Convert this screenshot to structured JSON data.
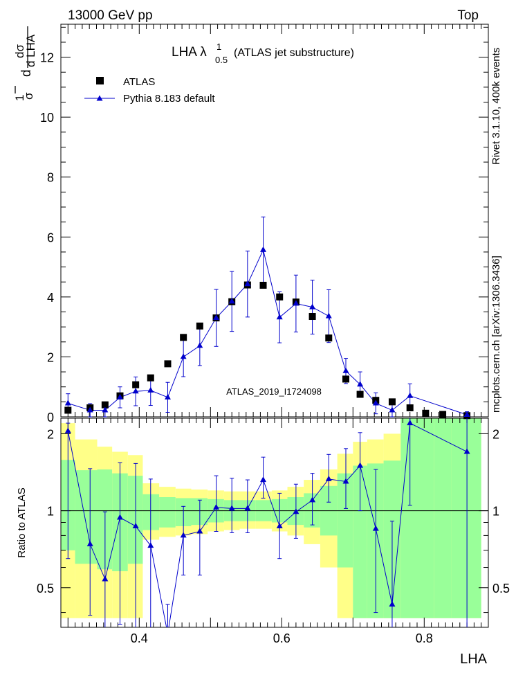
{
  "header": {
    "left": "13000 GeV pp",
    "right": "Top"
  },
  "side_labels": {
    "rivet": "Rivet 3.1.10,  400k events",
    "mcplots": "mcplots.cern.ch [arXiv:1306.3436]"
  },
  "chart_data": {
    "type": "scatter",
    "title_main": "LHA λ",
    "title_sup": "1",
    "title_sub": "0.5",
    "title_rest": "(ATLAS jet substructure)",
    "analysis_tag": "ATLAS_2019_I1724098",
    "xlabel": "LHA",
    "ylabel_top": "1/σ dσ/d LHA",
    "ylabel_frac_num": "1",
    "ylabel_frac_den": "σ",
    "ylabel_d": "d",
    "ylabel_num2": "dσ",
    "ylabel_den2": "d LHA",
    "ylabel_bottom": "Ratio to ATLAS",
    "xlim": [
      0.29,
      0.89
    ],
    "ylim_top": [
      0,
      13.1
    ],
    "ylim_ratio": [
      0.35,
      2.3
    ],
    "x_ticks": [
      0.4,
      0.6,
      0.8
    ],
    "x_tick_labels": [
      "0.4",
      "0.6",
      "0.8"
    ],
    "y_ticks_top": [
      0,
      2,
      4,
      6,
      8,
      10,
      12
    ],
    "y_tick_labels_top": [
      "0",
      "2",
      "4",
      "6",
      "8",
      "10",
      "12"
    ],
    "y_ticks_ratio": [
      0.5,
      1,
      2
    ],
    "y_tick_labels_ratio": [
      "0.5",
      "1",
      "2"
    ],
    "legend": [
      "ATLAS",
      "Pythia 8.183 default"
    ],
    "series": [
      {
        "name": "ATLAS",
        "x": [
          0.3,
          0.331,
          0.352,
          0.373,
          0.395,
          0.416,
          0.44,
          0.462,
          0.485,
          0.508,
          0.53,
          0.552,
          0.574,
          0.597,
          0.62,
          0.643,
          0.666,
          0.69,
          0.71,
          0.732,
          0.755,
          0.78,
          0.802,
          0.826,
          0.86
        ],
        "values": [
          0.22,
          0.3,
          0.4,
          0.7,
          1.07,
          1.3,
          1.77,
          2.65,
          3.03,
          3.3,
          3.84,
          4.4,
          4.39,
          4.0,
          3.83,
          3.35,
          2.63,
          1.26,
          0.75,
          0.55,
          0.5,
          0.3,
          0.12,
          0.08,
          0.04
        ]
      },
      {
        "name": "Pythia 8.183 default",
        "x": [
          0.3,
          0.331,
          0.352,
          0.373,
          0.395,
          0.416,
          0.44,
          0.462,
          0.485,
          0.508,
          0.53,
          0.552,
          0.574,
          0.597,
          0.62,
          0.643,
          0.666,
          0.69,
          0.71,
          0.732,
          0.755,
          0.78,
          0.86
        ],
        "values": [
          0.45,
          0.22,
          0.22,
          0.65,
          0.85,
          0.88,
          0.65,
          2.0,
          2.37,
          3.3,
          3.85,
          4.43,
          5.57,
          3.32,
          3.78,
          3.66,
          3.36,
          1.53,
          1.08,
          0.45,
          0.22,
          0.7,
          0.07
        ],
        "errors": [
          0.32,
          0.22,
          0.22,
          0.35,
          0.48,
          0.5,
          0.5,
          0.66,
          0.66,
          0.95,
          1.0,
          1.1,
          1.1,
          0.85,
          0.95,
          0.9,
          0.88,
          0.42,
          0.42,
          0.35,
          0.22,
          0.4,
          0.1
        ]
      }
    ],
    "ratio": {
      "x": [
        0.3,
        0.331,
        0.352,
        0.373,
        0.395,
        0.416,
        0.44,
        0.462,
        0.485,
        0.508,
        0.53,
        0.552,
        0.574,
        0.597,
        0.62,
        0.643,
        0.666,
        0.69,
        0.71,
        0.732,
        0.755,
        0.78,
        0.86
      ],
      "values": [
        2.05,
        0.74,
        0.54,
        0.94,
        0.87,
        0.73,
        0.33,
        0.8,
        0.83,
        1.03,
        1.02,
        1.02,
        1.32,
        0.87,
        0.99,
        1.1,
        1.33,
        1.3,
        1.5,
        0.85,
        0.43,
        2.2,
        1.7
      ],
      "err_low": [
        1.4,
        0.35,
        0.2,
        0.58,
        0.53,
        0.4,
        0.0,
        0.24,
        0.27,
        0.2,
        0.2,
        0.2,
        0.2,
        0.22,
        0.21,
        0.22,
        0.25,
        0.28,
        0.5,
        0.45,
        0.08,
        1.15,
        1.35
      ],
      "err_high": [
        0.15,
        0.72,
        0.45,
        0.6,
        0.66,
        0.6,
        0.1,
        0.24,
        0.27,
        0.34,
        0.32,
        0.3,
        0.3,
        0.3,
        0.28,
        0.3,
        0.33,
        0.45,
        0.52,
        0.6,
        0.48,
        0.1,
        0.6
      ]
    },
    "bands": {
      "edges": [
        0.29,
        0.31,
        0.341,
        0.362,
        0.384,
        0.405,
        0.428,
        0.451,
        0.473,
        0.496,
        0.519,
        0.541,
        0.563,
        0.586,
        0.608,
        0.631,
        0.654,
        0.678,
        0.7,
        0.72,
        0.743,
        0.767,
        0.79,
        0.814,
        0.838,
        0.88
      ],
      "green_low": [
        0.7,
        0.62,
        0.59,
        0.58,
        0.62,
        0.84,
        0.86,
        0.87,
        0.88,
        0.9,
        0.91,
        0.91,
        0.91,
        0.9,
        0.88,
        0.86,
        0.8,
        0.6,
        0.38,
        0.38,
        0.38,
        0.38,
        0.38,
        0.38,
        0.38
      ],
      "green_high": [
        1.58,
        1.44,
        1.45,
        1.4,
        1.37,
        1.16,
        1.13,
        1.12,
        1.12,
        1.11,
        1.1,
        1.1,
        1.1,
        1.11,
        1.13,
        1.17,
        1.25,
        1.4,
        1.5,
        1.53,
        1.57,
        2.3,
        2.3,
        2.3,
        2.3
      ],
      "yellow_low": [
        0.38,
        0.38,
        0.38,
        0.38,
        0.38,
        0.77,
        0.79,
        0.8,
        0.81,
        0.83,
        0.84,
        0.85,
        0.85,
        0.83,
        0.8,
        0.74,
        0.6,
        0.38,
        0.38,
        0.38,
        0.38,
        0.38,
        0.38,
        0.38,
        0.38
      ],
      "yellow_high": [
        2.2,
        1.9,
        1.78,
        1.7,
        1.65,
        1.28,
        1.24,
        1.22,
        1.21,
        1.2,
        1.19,
        1.19,
        1.19,
        1.2,
        1.24,
        1.32,
        1.45,
        1.67,
        1.86,
        1.9,
        2.0,
        2.3,
        2.3,
        2.3,
        2.3
      ]
    }
  },
  "colors": {
    "mc": "#0000cc",
    "data": "#000000",
    "band_inner": "#99ff99",
    "band_outer": "#ffff88",
    "side_text": "#7f7f7f",
    "tag_text": "#a0a0a0"
  }
}
